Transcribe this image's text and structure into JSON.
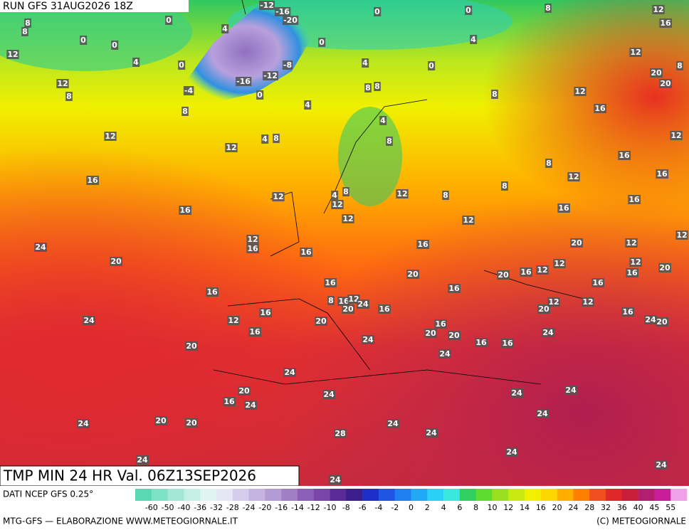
{
  "header": {
    "title": "RUN GFS 31AUG2026 18Z"
  },
  "footer": {
    "title": "TMP MIN 24 HR Val. 06Z13SEP2026",
    "source": "DATI NCEP GFS 0.25°",
    "credit": "MTG-GFS — ELABORAZIONE WWW.METEOGIORNALE.IT",
    "copyright": "(C) METEOGIORNALE"
  },
  "map": {
    "labels": [
      -12,
      -16,
      -20,
      0,
      4,
      0,
      0,
      8,
      8,
      12,
      4,
      0,
      0,
      0,
      0,
      8,
      12,
      16,
      4,
      12,
      8,
      0,
      4,
      -8,
      -12,
      -16,
      -4,
      0,
      8,
      8,
      4,
      8,
      12,
      8,
      12,
      12,
      4,
      8,
      4,
      8,
      8,
      12,
      16,
      20,
      20,
      12,
      16,
      8,
      12,
      16,
      16,
      16,
      12,
      4,
      8,
      12,
      12,
      8,
      8,
      16,
      16,
      12,
      12,
      12,
      16,
      16,
      16,
      20,
      12,
      12,
      24,
      20,
      20,
      20,
      16,
      12,
      12,
      12,
      16,
      20,
      16,
      16,
      16,
      16,
      8,
      16,
      12,
      20,
      24,
      16,
      20,
      12,
      12,
      16,
      12,
      24,
      20,
      16,
      24,
      20,
      16,
      16,
      20,
      20,
      24,
      24,
      16,
      16,
      20,
      24,
      24,
      20,
      16,
      24,
      24,
      24,
      24,
      20,
      20,
      24,
      24,
      28,
      24,
      24,
      24,
      24,
      24,
      24
    ]
  },
  "scale": {
    "ticks": [
      -60,
      -50,
      -40,
      -36,
      -32,
      -28,
      -24,
      -20,
      -16,
      -14,
      -12,
      -10,
      -8,
      -6,
      -4,
      -2,
      0,
      2,
      4,
      6,
      8,
      10,
      12,
      14,
      16,
      20,
      24,
      28,
      32,
      36,
      40,
      45,
      55
    ],
    "colors": [
      "#5ad7b5",
      "#7ee0c4",
      "#a3e8d6",
      "#c5efe5",
      "#e0f5f0",
      "#e6e6f5",
      "#d6cdec",
      "#c5b4e0",
      "#b39bd4",
      "#a07fc6",
      "#8c5fb8",
      "#7a46a8",
      "#5a2a96",
      "#3a1f8c",
      "#1e2fc9",
      "#1f55e0",
      "#1f7ef0",
      "#23a8f5",
      "#2ad0f5",
      "#3ae8e0",
      "#30d060",
      "#60dc30",
      "#9be020",
      "#c8ea10",
      "#f0f000",
      "#ffd700",
      "#ffae00",
      "#ff8000",
      "#f05020",
      "#e02828",
      "#c81e3c",
      "#b41e6e",
      "#c81e9a",
      "#f0a0e6"
    ]
  }
}
